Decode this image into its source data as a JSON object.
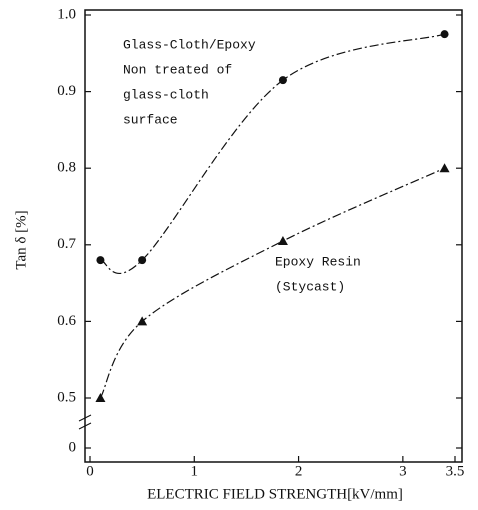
{
  "chart_data": {
    "type": "line",
    "xlabel": "ELECTRIC FIELD STRENGTH[kV/mm]",
    "ylabel": "Tan δ [%]",
    "xlim": [
      0,
      3.5
    ],
    "xticks": [
      0,
      1,
      2,
      3,
      3.5
    ],
    "ylim": [
      0,
      1.0
    ],
    "yticks": [
      0,
      0.5,
      0.6,
      0.7,
      0.8,
      0.9,
      {
        "value": 1.0,
        "label": "1.0"
      }
    ],
    "axis_break": [
      0,
      0.5
    ],
    "x": [
      0.1,
      0.5,
      1.85,
      3.4
    ],
    "series": [
      {
        "marker": "circle",
        "color": "#111",
        "values": [
          0.68,
          0.68,
          0.915,
          0.975
        ]
      },
      {
        "marker": "triangle",
        "color": "#111",
        "values": [
          0.5,
          0.6,
          0.705,
          0.8
        ]
      }
    ],
    "annotations": [
      {
        "lines": [
          "Glass-Cloth/Epoxy",
          "Non treated of",
          "glass-cloth",
          "surface"
        ]
      },
      {
        "lines": [
          "Epoxy Resin",
          "(Stycast)"
        ]
      }
    ]
  }
}
